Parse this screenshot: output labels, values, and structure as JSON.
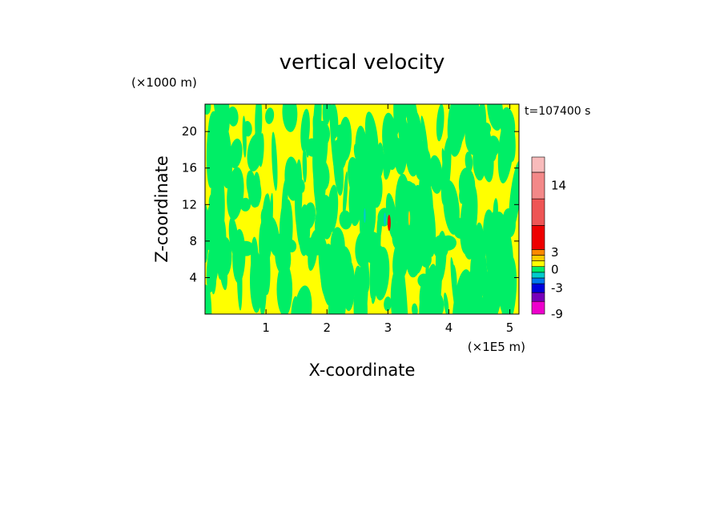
{
  "chart_data": {
    "type": "heatmap",
    "title": "vertical velocity",
    "xlabel": "X-coordinate",
    "ylabel": "Z-coordinate",
    "x_unit": "(×1E5 m)",
    "y_unit": "(×1000 m)",
    "time_label": "t=107400 s",
    "xlim": [
      0,
      5.15
    ],
    "ylim": [
      0,
      23
    ],
    "x_ticks": [
      {
        "value": 1,
        "label": "1"
      },
      {
        "value": 2,
        "label": "2"
      },
      {
        "value": 3,
        "label": "3"
      },
      {
        "value": 4,
        "label": "4"
      },
      {
        "value": 5,
        "label": "5"
      }
    ],
    "y_ticks": [
      {
        "value": 4,
        "label": "4"
      },
      {
        "value": 8,
        "label": "8"
      },
      {
        "value": 12,
        "label": "12"
      },
      {
        "value": 16,
        "label": "16"
      },
      {
        "value": 20,
        "label": "20"
      }
    ],
    "field_description_colors": {
      "dominant_positive": "#ffff00",
      "dominant_negative": "#00ee66"
    },
    "colorbar": {
      "bins": [
        {
          "color": "#ee00cc",
          "ticked": "-9"
        },
        {
          "color": "#7700bb",
          "ticked": ""
        },
        {
          "color": "#0000dd",
          "ticked": "-3"
        },
        {
          "color": "#0077ee",
          "ticked": ""
        },
        {
          "color": "#00cccc",
          "ticked": ""
        },
        {
          "color": "#00ee66",
          "ticked": "0"
        },
        {
          "color": "#ffff00",
          "ticked": ""
        },
        {
          "color": "#ffcc00",
          "ticked": ""
        },
        {
          "color": "#ff8800",
          "ticked": "3"
        },
        {
          "color": "#ee0000",
          "ticked": ""
        },
        {
          "color": "#ee5555",
          "ticked": ""
        },
        {
          "color": "#f38888",
          "ticked": "14"
        },
        {
          "color": "#f8bbbb",
          "ticked": ""
        }
      ]
    }
  }
}
